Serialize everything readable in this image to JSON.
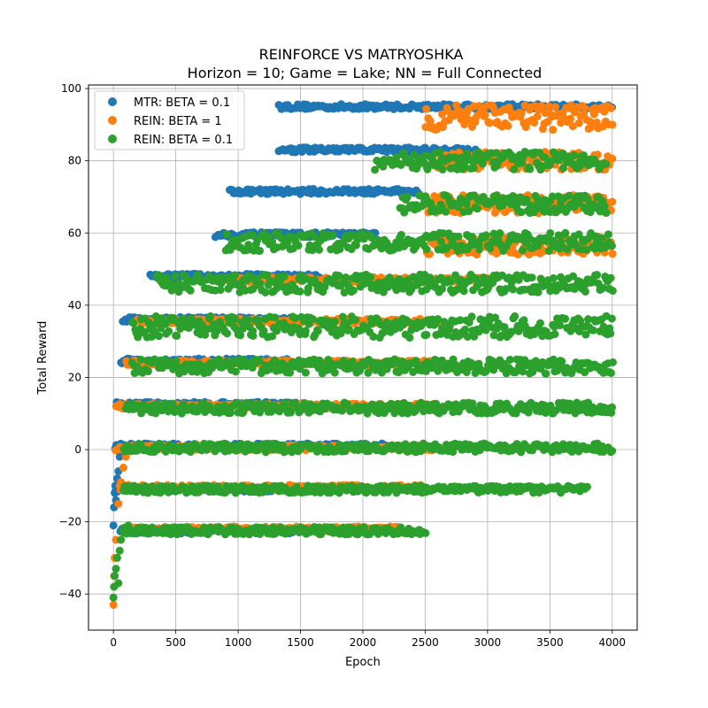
{
  "chart_data": {
    "type": "scatter",
    "title": "REINFORCE VS MATRYOSHKA",
    "subtitle": "Horizon = 10; Game = Lake; NN = Full Connected",
    "xlabel": "Epoch",
    "ylabel": "Total Reward",
    "xlim": [
      -200,
      4200
    ],
    "ylim": [
      -50,
      101
    ],
    "xticks": [
      0,
      500,
      1000,
      1500,
      2000,
      2500,
      3000,
      3500,
      4000
    ],
    "yticks": [
      -40,
      -20,
      0,
      20,
      40,
      60,
      80,
      100
    ],
    "grid": true,
    "legend_position": "top-left",
    "series": [
      {
        "name": "MTR: BETA = 0.1",
        "color": "#1f77b4",
        "bands": [
          {
            "y": 95,
            "x": [
              1330,
              4000
            ]
          },
          {
            "y": 83,
            "x": [
              1330,
              2900
            ]
          },
          {
            "y": 71.5,
            "x": [
              930,
              2450
            ]
          },
          {
            "y": 59.5,
            "x": [
              820,
              2100
            ]
          },
          {
            "y": 48,
            "x": [
              300,
              1650
            ]
          },
          {
            "y": 36,
            "x": [
              80,
              1450
            ]
          },
          {
            "y": 24.5,
            "x": [
              60,
              1450
            ]
          },
          {
            "y": 12.5,
            "x": [
              30,
              1550
            ]
          },
          {
            "y": 1,
            "x": [
              10,
              2200
            ]
          },
          {
            "y": -11,
            "x": [
              20,
              1300
            ]
          },
          {
            "y": -22.5,
            "x": [
              60,
              1500
            ]
          }
        ],
        "ramp": [
          {
            "x": 0,
            "y": -21
          },
          {
            "x": 5,
            "y": -16
          },
          {
            "x": 10,
            "y": -12
          },
          {
            "x": 15,
            "y": -10
          },
          {
            "x": 20,
            "y": -14
          },
          {
            "x": 30,
            "y": -8
          },
          {
            "x": 40,
            "y": -6
          },
          {
            "x": 50,
            "y": -2
          }
        ]
      },
      {
        "name": "REIN: BETA = 1",
        "color": "#ff7f0e",
        "bands": [
          {
            "y": 92,
            "x": [
              2500,
              4000
            ],
            "spread": 3.5
          },
          {
            "y": 80,
            "x": [
              2600,
              4000
            ],
            "spread": 2.5
          },
          {
            "y": 68,
            "x": [
              2500,
              4000
            ],
            "spread": 2.5
          },
          {
            "y": 56.5,
            "x": [
              2500,
              4000
            ],
            "spread": 2.5
          },
          {
            "y": 47,
            "x": [
              900,
              3000
            ]
          },
          {
            "y": 35.5,
            "x": [
              200,
              2600
            ]
          },
          {
            "y": 24,
            "x": [
              100,
              2600
            ]
          },
          {
            "y": 12,
            "x": [
              20,
              2600
            ]
          },
          {
            "y": 0.5,
            "x": [
              20,
              2600
            ]
          },
          {
            "y": -10.5,
            "x": [
              50,
              2500
            ]
          },
          {
            "y": -22,
            "x": [
              100,
              2300
            ]
          }
        ],
        "ramp": [
          {
            "x": 0,
            "y": -43
          },
          {
            "x": 5,
            "y": -35
          },
          {
            "x": 10,
            "y": -30
          },
          {
            "x": 20,
            "y": -25
          },
          {
            "x": 40,
            "y": -15
          },
          {
            "x": 60,
            "y": -9
          },
          {
            "x": 80,
            "y": -5
          },
          {
            "x": 100,
            "y": -2
          }
        ]
      },
      {
        "name": "REIN: BETA = 0.1",
        "color": "#2ca02c",
        "bands": [
          {
            "y": 80,
            "x": [
              2100,
              3950
            ],
            "spread": 2.5
          },
          {
            "y": 68,
            "x": [
              2300,
              3950
            ],
            "spread": 2.5
          },
          {
            "y": 57.5,
            "x": [
              900,
              4000
            ],
            "spread": 2.5
          },
          {
            "y": 46,
            "x": [
              350,
              4000
            ],
            "spread": 2.5
          },
          {
            "y": 34,
            "x": [
              150,
              4000
            ],
            "spread": 3
          },
          {
            "y": 23,
            "x": [
              150,
              4000
            ],
            "spread": 2
          },
          {
            "y": 11.5,
            "x": [
              100,
              4000
            ],
            "spread": 1.5
          },
          {
            "y": 0.5,
            "x": [
              80,
              4000
            ],
            "spread": 1.2
          },
          {
            "y": -11,
            "x": [
              80,
              3800
            ],
            "spread": 1
          },
          {
            "y": -22.5,
            "x": [
              80,
              2500
            ],
            "spread": 1
          }
        ],
        "ramp": [
          {
            "x": 0,
            "y": -41
          },
          {
            "x": 5,
            "y": -38
          },
          {
            "x": 10,
            "y": -35
          },
          {
            "x": 20,
            "y": -33
          },
          {
            "x": 30,
            "y": -30
          },
          {
            "x": 40,
            "y": -37
          },
          {
            "x": 50,
            "y": -28
          },
          {
            "x": 60,
            "y": -25
          },
          {
            "x": 80,
            "y": -23
          },
          {
            "x": 100,
            "y": -22
          },
          {
            "x": 120,
            "y": -21
          }
        ]
      }
    ]
  }
}
